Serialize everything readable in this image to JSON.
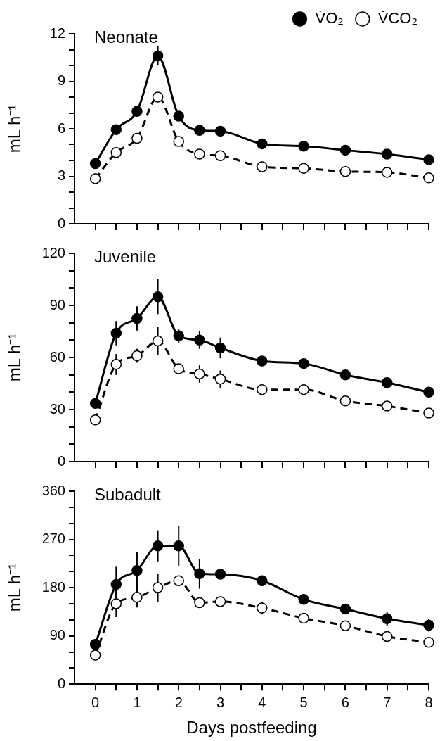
{
  "chart_data": [
    {
      "type": "line",
      "title": "Neonate",
      "ylabel": "mL h⁻¹",
      "x": [
        0,
        0.5,
        1,
        1.5,
        2,
        2.5,
        3,
        4,
        5,
        6,
        7,
        8
      ],
      "xlim": [
        -0.5,
        8
      ],
      "xticks": [
        {
          "value": 0,
          "label": null
        },
        {
          "value": 0.5,
          "label": null
        },
        {
          "value": 1,
          "label": null
        },
        {
          "value": 1.5,
          "label": null
        },
        {
          "value": 2,
          "label": null
        },
        {
          "value": 2.5,
          "label": null
        },
        {
          "value": 3,
          "label": null
        },
        {
          "value": 3.5,
          "label": null
        },
        {
          "value": 4,
          "label": null
        },
        {
          "value": 4.5,
          "label": null
        },
        {
          "value": 5,
          "label": null
        },
        {
          "value": 5.5,
          "label": null
        },
        {
          "value": 6,
          "label": null
        },
        {
          "value": 6.5,
          "label": null
        },
        {
          "value": 7,
          "label": null
        },
        {
          "value": 7.5,
          "label": null
        },
        {
          "value": 8,
          "label": null
        }
      ],
      "ylim": [
        0,
        12
      ],
      "yticks": [
        0,
        {
          "value": 1,
          "label": null
        },
        {
          "value": 2,
          "label": null
        },
        3,
        {
          "value": 4,
          "label": null
        },
        {
          "value": 5,
          "label": null
        },
        6,
        {
          "value": 7,
          "label": null
        },
        {
          "value": 8,
          "label": null
        },
        9,
        {
          "value": 10,
          "label": null
        },
        {
          "value": 11,
          "label": null
        },
        12
      ],
      "tick_labels": "y",
      "legend": "top right",
      "marker": "circle",
      "grid": false,
      "series": [
        {
          "name": "V̇O₂",
          "color": "#000000",
          "line_style": "solid",
          "values": [
            3.8,
            5.95,
            7.1,
            10.6,
            6.8,
            5.9,
            5.85,
            5.05,
            4.9,
            4.65,
            4.4,
            4.05
          ],
          "errors": [
            null,
            null,
            null,
            0.6,
            null,
            null,
            null,
            null,
            null,
            null,
            null,
            null
          ]
        },
        {
          "name": "V̇CO₂",
          "color": "#000000",
          "line_style": "dashed",
          "values": [
            2.85,
            4.5,
            5.4,
            8.0,
            5.2,
            4.4,
            4.3,
            3.6,
            3.5,
            3.3,
            3.25,
            2.9
          ]
        }
      ]
    },
    {
      "type": "line",
      "title": "Juvenile",
      "ylabel": "mL h⁻¹",
      "x": [
        0,
        0.5,
        1,
        1.5,
        2,
        2.5,
        3,
        4,
        5,
        6,
        7,
        8
      ],
      "xlim": [
        -0.5,
        8
      ],
      "xticks": [
        {
          "value": 0,
          "label": null
        },
        {
          "value": 0.5,
          "label": null
        },
        {
          "value": 1,
          "label": null
        },
        {
          "value": 1.5,
          "label": null
        },
        {
          "value": 2,
          "label": null
        },
        {
          "value": 2.5,
          "label": null
        },
        {
          "value": 3,
          "label": null
        },
        {
          "value": 3.5,
          "label": null
        },
        {
          "value": 4,
          "label": null
        },
        {
          "value": 4.5,
          "label": null
        },
        {
          "value": 5,
          "label": null
        },
        {
          "value": 5.5,
          "label": null
        },
        {
          "value": 6,
          "label": null
        },
        {
          "value": 6.5,
          "label": null
        },
        {
          "value": 7,
          "label": null
        },
        {
          "value": 7.5,
          "label": null
        },
        {
          "value": 8,
          "label": null
        }
      ],
      "ylim": [
        0,
        120
      ],
      "yticks": [
        0,
        {
          "value": 10,
          "label": null
        },
        {
          "value": 20,
          "label": null
        },
        30,
        {
          "value": 40,
          "label": null
        },
        {
          "value": 50,
          "label": null
        },
        60,
        {
          "value": 70,
          "label": null
        },
        {
          "value": 80,
          "label": null
        },
        90,
        {
          "value": 100,
          "label": null
        },
        {
          "value": 110,
          "label": null
        },
        120
      ],
      "tick_labels": "y",
      "marker": "circle",
      "grid": false,
      "series": [
        {
          "color": "#000000",
          "line_style": "solid",
          "values": [
            33.5,
            74,
            82.5,
            95,
            72.5,
            70,
            65.5,
            58,
            56.5,
            50,
            45.5,
            40
          ],
          "errors": [
            null,
            7,
            7,
            10,
            4,
            5,
            6,
            null,
            null,
            null,
            null,
            null
          ]
        },
        {
          "color": "#000000",
          "line_style": "dashed",
          "values": [
            24,
            56,
            61,
            69.5,
            53.5,
            50.5,
            47.5,
            41.5,
            41.5,
            35,
            32,
            28
          ],
          "errors": [
            null,
            6,
            4,
            8,
            null,
            5,
            5,
            null,
            null,
            null,
            null,
            null
          ]
        }
      ]
    },
    {
      "type": "line",
      "title": "Subadult",
      "ylabel": "mL h⁻¹",
      "xlabel": "Days postfeeding",
      "x": [
        0,
        0.5,
        1,
        1.5,
        2,
        2.5,
        3,
        4,
        5,
        6,
        7,
        8
      ],
      "xlim": [
        -0.5,
        8
      ],
      "xticks": [
        {
          "value": 0,
          "label": "0"
        },
        {
          "value": 0.5,
          "label": null
        },
        {
          "value": 1,
          "label": "1"
        },
        {
          "value": 1.5,
          "label": null
        },
        {
          "value": 2,
          "label": "2"
        },
        {
          "value": 2.5,
          "label": null
        },
        {
          "value": 3,
          "label": "3"
        },
        {
          "value": 3.5,
          "label": null
        },
        {
          "value": 4,
          "label": "4"
        },
        {
          "value": 4.5,
          "label": null
        },
        {
          "value": 5,
          "label": "5"
        },
        {
          "value": 5.5,
          "label": null
        },
        {
          "value": 6,
          "label": "6"
        },
        {
          "value": 6.5,
          "label": null
        },
        {
          "value": 7,
          "label": "7"
        },
        {
          "value": 7.5,
          "label": null
        },
        {
          "value": 8,
          "label": "8"
        }
      ],
      "ylim": [
        0,
        360
      ],
      "yticks": [
        0,
        {
          "value": 30,
          "label": null
        },
        {
          "value": 60,
          "label": null
        },
        90,
        {
          "value": 120,
          "label": null
        },
        {
          "value": 150,
          "label": null
        },
        180,
        {
          "value": 210,
          "label": null
        },
        {
          "value": 240,
          "label": null
        },
        270,
        {
          "value": 300,
          "label": null
        },
        {
          "value": 330,
          "label": null
        },
        360
      ],
      "marker": "circle",
      "grid": false,
      "series": [
        {
          "color": "#000000",
          "line_style": "solid",
          "values": [
            74,
            186,
            212,
            258,
            258,
            206,
            205,
            193,
            158,
            140,
            122,
            110
          ],
          "errors": [
            null,
            33,
            35,
            29,
            37,
            28,
            null,
            null,
            null,
            null,
            13,
            12
          ]
        },
        {
          "color": "#000000",
          "line_style": "dashed",
          "values": [
            54,
            150,
            162,
            180,
            193,
            152,
            154,
            142,
            123,
            109,
            89,
            78
          ],
          "errors": [
            null,
            25,
            19,
            26,
            null,
            null,
            null,
            12,
            null,
            null,
            8,
            null
          ]
        }
      ]
    }
  ]
}
